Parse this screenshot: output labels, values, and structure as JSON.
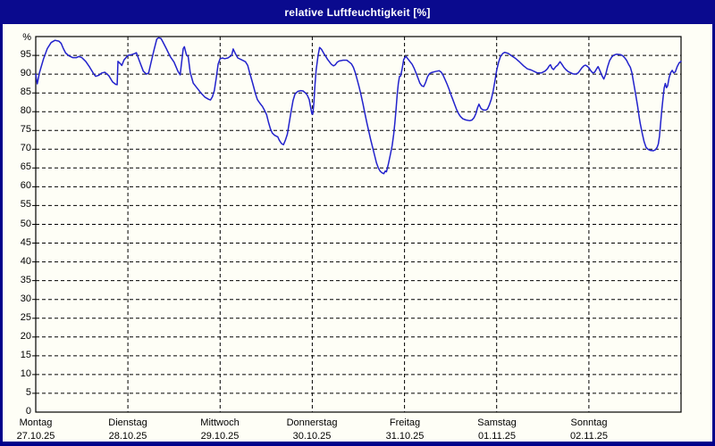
{
  "window": {
    "title": "relative Luftfeuchtigkeit [%]"
  },
  "colors": {
    "frame": "#0A0A8E",
    "titlebar_bg": "#0A0A8E",
    "title_text": "#FFFFFF",
    "plot_background": "#FEFEF6",
    "grid": "#000000",
    "axis": "#000000",
    "line": "#2222CC",
    "label_text": "#000000"
  },
  "chart_data": {
    "type": "line",
    "title": "relative Luftfeuchtigkeit [%]",
    "unit_label": "%",
    "ylabel": "relative Luftfeuchtigkeit",
    "ylim": [
      0,
      100
    ],
    "y_ticks": [
      0,
      5,
      10,
      15,
      20,
      25,
      30,
      35,
      40,
      45,
      50,
      55,
      60,
      65,
      70,
      75,
      80,
      85,
      90,
      95
    ],
    "grid": "dashed",
    "legend_position": "none",
    "x_hours_total": 168,
    "x_days": [
      {
        "name": "Montag",
        "date": "27.10.25"
      },
      {
        "name": "Dienstag",
        "date": "28.10.25"
      },
      {
        "name": "Mittwoch",
        "date": "29.10.25"
      },
      {
        "name": "Donnerstag",
        "date": "30.10.25"
      },
      {
        "name": "Freitag",
        "date": "31.10.25"
      },
      {
        "name": "Samstag",
        "date": "01.11.25"
      },
      {
        "name": "Sonntag",
        "date": "02.11.25"
      }
    ],
    "series": [
      {
        "name": "relative Luftfeuchtigkeit [%]",
        "points": [
          [
            0,
            90
          ],
          [
            0.4,
            87.4
          ],
          [
            1,
            90.5
          ],
          [
            2,
            94
          ],
          [
            3,
            96.8
          ],
          [
            4,
            98.4
          ],
          [
            5,
            99
          ],
          [
            6,
            98.8
          ],
          [
            6.6,
            98.2
          ],
          [
            7.2,
            96.8
          ],
          [
            7.8,
            95.6
          ],
          [
            8.6,
            94.9
          ],
          [
            9.6,
            94.4
          ],
          [
            10.6,
            94.4
          ],
          [
            11.2,
            94.7
          ],
          [
            12,
            94.4
          ],
          [
            13,
            93.4
          ],
          [
            14,
            91.9
          ],
          [
            15,
            90.2
          ],
          [
            15.6,
            89.4
          ],
          [
            16.4,
            89.7
          ],
          [
            17.2,
            90.3
          ],
          [
            18,
            90.5
          ],
          [
            19,
            89.6
          ],
          [
            20,
            87.9
          ],
          [
            20.8,
            87.3
          ],
          [
            21.2,
            87.2
          ],
          [
            21.4,
            93.4
          ],
          [
            22,
            92.8
          ],
          [
            22.4,
            92.3
          ],
          [
            23,
            93.8
          ],
          [
            24,
            95
          ],
          [
            25,
            95.2
          ],
          [
            25.8,
            95.5
          ],
          [
            26.2,
            95.7
          ],
          [
            27,
            93.5
          ],
          [
            28,
            90.8
          ],
          [
            28.8,
            90
          ],
          [
            29.4,
            90.3
          ],
          [
            30,
            93
          ],
          [
            30.8,
            96.5
          ],
          [
            31.5,
            99.3
          ],
          [
            32,
            99.7
          ],
          [
            32.6,
            99.5
          ],
          [
            33,
            98.8
          ],
          [
            34,
            96.8
          ],
          [
            35,
            94.7
          ],
          [
            36,
            93.2
          ],
          [
            37,
            90.8
          ],
          [
            37.6,
            89.8
          ],
          [
            38.4,
            96.8
          ],
          [
            38.7,
            97.3
          ],
          [
            39.2,
            95.2
          ],
          [
            39.7,
            94.6
          ],
          [
            40.2,
            90.5
          ],
          [
            41,
            87.6
          ],
          [
            42,
            86.3
          ],
          [
            43,
            85
          ],
          [
            44,
            83.9
          ],
          [
            45,
            83.3
          ],
          [
            45.5,
            83.1
          ],
          [
            46,
            84
          ],
          [
            46.5,
            85.6
          ],
          [
            47,
            89
          ],
          [
            47.5,
            92.7
          ],
          [
            48,
            94.1
          ],
          [
            48.6,
            94.3
          ],
          [
            49.2,
            94.1
          ],
          [
            50,
            94.3
          ],
          [
            51,
            95
          ],
          [
            51.4,
            96.7
          ],
          [
            52,
            95.4
          ],
          [
            52.6,
            94.3
          ],
          [
            53.6,
            93.8
          ],
          [
            54.6,
            93.3
          ],
          [
            55.2,
            92.3
          ],
          [
            55.7,
            90.3
          ],
          [
            56.2,
            88.6
          ],
          [
            56.7,
            86.7
          ],
          [
            57.2,
            84.8
          ],
          [
            57.7,
            83.2
          ],
          [
            58.3,
            82.3
          ],
          [
            59,
            81.4
          ],
          [
            59.6,
            80.3
          ],
          [
            60.1,
            79.2
          ],
          [
            60.6,
            77.2
          ],
          [
            61.1,
            75.4
          ],
          [
            61.6,
            74.3
          ],
          [
            62.2,
            73.7
          ],
          [
            63,
            73.3
          ],
          [
            63.4,
            72.4
          ],
          [
            64,
            71.5
          ],
          [
            64.5,
            71.2
          ],
          [
            65,
            72.4
          ],
          [
            65.5,
            74
          ],
          [
            66,
            77
          ],
          [
            66.5,
            80.2
          ],
          [
            67,
            83
          ],
          [
            67.5,
            84.7
          ],
          [
            68.2,
            85.4
          ],
          [
            69,
            85.6
          ],
          [
            69.6,
            85.5
          ],
          [
            70.2,
            85
          ],
          [
            70.7,
            84.4
          ],
          [
            71.2,
            83.2
          ],
          [
            71.6,
            81
          ],
          [
            71.9,
            79.4
          ],
          [
            72.1,
            79.3
          ],
          [
            72.4,
            82
          ],
          [
            72.7,
            87
          ],
          [
            73,
            91
          ],
          [
            73.5,
            95
          ],
          [
            73.9,
            97.1
          ],
          [
            74.4,
            96.6
          ],
          [
            75,
            95.5
          ],
          [
            75.5,
            94.7
          ],
          [
            76,
            93.9
          ],
          [
            76.5,
            93.2
          ],
          [
            77,
            92.6
          ],
          [
            77.5,
            92.2
          ],
          [
            78,
            92.5
          ],
          [
            78.5,
            93.2
          ],
          [
            79,
            93.5
          ],
          [
            80,
            93.7
          ],
          [
            81,
            93.7
          ],
          [
            81.6,
            93.2
          ],
          [
            82.2,
            92.7
          ],
          [
            82.7,
            91.8
          ],
          [
            83.2,
            90.3
          ],
          [
            83.7,
            88.5
          ],
          [
            84.2,
            86.5
          ],
          [
            84.7,
            84.4
          ],
          [
            85.2,
            82
          ],
          [
            85.7,
            79.5
          ],
          [
            86.2,
            77
          ],
          [
            86.7,
            74.8
          ],
          [
            87.2,
            72.5
          ],
          [
            87.7,
            70.5
          ],
          [
            88.2,
            68.4
          ],
          [
            88.7,
            66.4
          ],
          [
            89.2,
            65
          ],
          [
            89.7,
            64.1
          ],
          [
            90.2,
            63.7
          ],
          [
            90.6,
            63.5
          ],
          [
            91,
            64.2
          ],
          [
            91.3,
            64
          ],
          [
            91.8,
            66
          ],
          [
            92.3,
            68.5
          ],
          [
            92.8,
            71
          ],
          [
            93.2,
            74
          ],
          [
            93.5,
            77
          ],
          [
            93.8,
            80.5
          ],
          [
            94.1,
            84.5
          ],
          [
            94.4,
            87.5
          ],
          [
            94.7,
            89.4
          ],
          [
            95,
            89.5
          ],
          [
            95.4,
            91.5
          ],
          [
            95.8,
            93.9
          ],
          [
            96.1,
            94.4
          ],
          [
            96.4,
            94.7
          ],
          [
            97,
            93.9
          ],
          [
            98,
            92.6
          ],
          [
            98.5,
            91.6
          ],
          [
            99,
            90.3
          ],
          [
            99.5,
            89
          ],
          [
            100,
            87.6
          ],
          [
            100.5,
            86.9
          ],
          [
            101,
            86.7
          ],
          [
            101.5,
            87.8
          ],
          [
            102,
            89.3
          ],
          [
            102.5,
            90.1
          ],
          [
            103,
            90.4
          ],
          [
            104,
            90.7
          ],
          [
            105,
            90.9
          ],
          [
            105.6,
            90.5
          ],
          [
            106.1,
            89.6
          ],
          [
            106.6,
            88.5
          ],
          [
            107.1,
            87.3
          ],
          [
            107.6,
            86
          ],
          [
            108.1,
            84.5
          ],
          [
            108.6,
            83.2
          ],
          [
            109.1,
            81.8
          ],
          [
            109.6,
            80.5
          ],
          [
            110.1,
            79.4
          ],
          [
            110.6,
            78.7
          ],
          [
            111.2,
            78.1
          ],
          [
            112,
            77.8
          ],
          [
            113,
            77.6
          ],
          [
            113.6,
            77.8
          ],
          [
            114.1,
            78.4
          ],
          [
            114.6,
            79.5
          ],
          [
            115,
            81
          ],
          [
            115.4,
            82
          ],
          [
            115.9,
            80.9
          ],
          [
            116.4,
            80.5
          ],
          [
            117.1,
            80.4
          ],
          [
            117.6,
            80.7
          ],
          [
            118.1,
            81.8
          ],
          [
            118.6,
            83.3
          ],
          [
            119.1,
            85.5
          ],
          [
            119.6,
            88.5
          ],
          [
            120,
            91
          ],
          [
            120.5,
            93.2
          ],
          [
            121,
            94.7
          ],
          [
            121.6,
            95.5
          ],
          [
            122.1,
            95.8
          ],
          [
            123,
            95.5
          ],
          [
            124,
            94.8
          ],
          [
            125,
            94.1
          ],
          [
            126,
            93.2
          ],
          [
            127,
            92.2
          ],
          [
            128,
            91.4
          ],
          [
            129,
            91.1
          ],
          [
            130,
            90.6
          ],
          [
            130.6,
            90.3
          ],
          [
            131.6,
            90.3
          ],
          [
            132.2,
            90.6
          ],
          [
            132.7,
            90.9
          ],
          [
            133.2,
            91.4
          ],
          [
            133.7,
            92.2
          ],
          [
            134,
            92.5
          ],
          [
            134.4,
            91.6
          ],
          [
            134.8,
            91.2
          ],
          [
            135.4,
            92
          ],
          [
            135.9,
            92.4
          ],
          [
            136.5,
            93.3
          ],
          [
            137,
            92.6
          ],
          [
            137.5,
            91.8
          ],
          [
            138,
            91.2
          ],
          [
            138.6,
            90.7
          ],
          [
            139.2,
            90.4
          ],
          [
            139.8,
            90.1
          ],
          [
            140.6,
            90
          ],
          [
            141.2,
            90.3
          ],
          [
            141.7,
            91
          ],
          [
            142.2,
            91.7
          ],
          [
            142.7,
            92.2
          ],
          [
            143.1,
            92.4
          ],
          [
            143.6,
            92.1
          ],
          [
            144,
            91.7
          ],
          [
            144.5,
            90.9
          ],
          [
            145,
            90.3
          ],
          [
            145.5,
            90.5
          ],
          [
            146,
            91.4
          ],
          [
            146.4,
            92
          ],
          [
            146.9,
            90.9
          ],
          [
            147.4,
            89.6
          ],
          [
            147.9,
            88.7
          ],
          [
            148.4,
            90
          ],
          [
            148.9,
            92
          ],
          [
            149.4,
            93.6
          ],
          [
            150,
            94.6
          ],
          [
            150.6,
            95.1
          ],
          [
            151.2,
            95.3
          ],
          [
            152.2,
            95.2
          ],
          [
            152.8,
            94.9
          ],
          [
            153.3,
            94.4
          ],
          [
            153.8,
            93.7
          ],
          [
            154.3,
            92.7
          ],
          [
            154.8,
            91.8
          ],
          [
            155.2,
            90.4
          ],
          [
            155.5,
            88.6
          ],
          [
            155.9,
            86.3
          ],
          [
            156.2,
            84.5
          ],
          [
            156.7,
            81.5
          ],
          [
            157.1,
            78.5
          ],
          [
            157.4,
            76.8
          ],
          [
            157.9,
            74.2
          ],
          [
            158.4,
            72
          ],
          [
            158.9,
            70.5
          ],
          [
            159.4,
            70
          ],
          [
            160,
            69.7
          ],
          [
            160.8,
            69.6
          ],
          [
            161.4,
            69.9
          ],
          [
            161.8,
            70.6
          ],
          [
            162.1,
            71.4
          ],
          [
            162.4,
            73.5
          ],
          [
            162.7,
            77
          ],
          [
            163,
            80.5
          ],
          [
            163.3,
            83.5
          ],
          [
            163.6,
            86.3
          ],
          [
            163.9,
            87.5
          ],
          [
            164.2,
            86.4
          ],
          [
            164.5,
            86.9
          ],
          [
            164.9,
            89.1
          ],
          [
            165.3,
            90.4
          ],
          [
            165.7,
            91
          ],
          [
            166.1,
            90.3
          ],
          [
            166.5,
            90.6
          ],
          [
            167,
            92
          ],
          [
            167.5,
            93
          ],
          [
            168,
            93.4
          ]
        ]
      }
    ]
  }
}
